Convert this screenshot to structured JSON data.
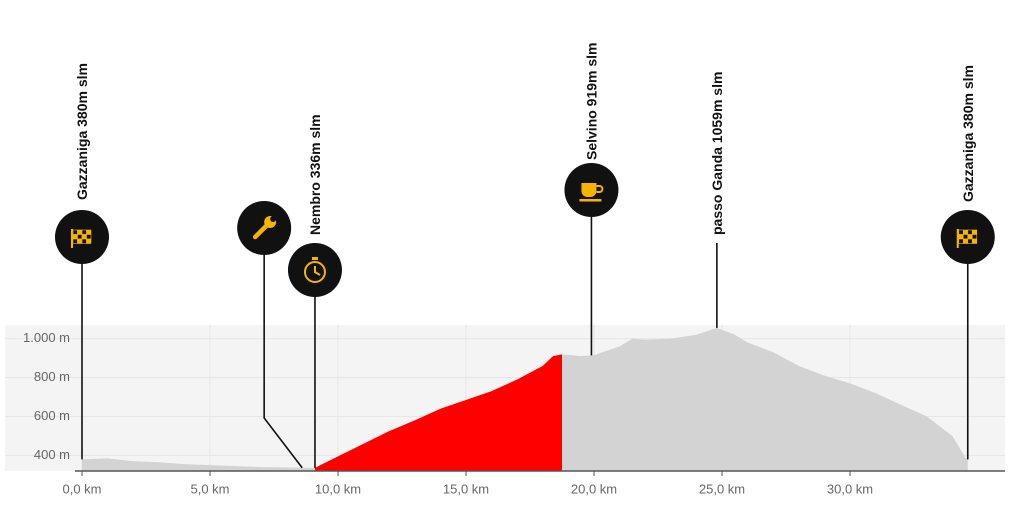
{
  "chart_data": {
    "type": "area",
    "x": [
      0,
      1,
      2,
      3,
      4,
      5,
      6,
      7,
      8,
      9.1,
      10,
      11,
      12,
      13,
      14,
      15,
      16,
      17,
      18,
      18.4,
      18.75,
      19.5,
      20,
      21,
      21.5,
      22,
      23,
      24,
      24.8,
      25.5,
      26,
      27,
      28,
      29,
      30,
      31,
      32,
      33,
      34,
      34.5,
      34.6
    ],
    "series": [
      {
        "color": "#d3d3d3",
        "values": [
          380,
          385,
          370,
          365,
          355,
          350,
          345,
          340,
          338,
          336,
          null,
          null,
          null,
          null,
          null,
          null,
          null,
          null,
          null,
          null,
          919,
          910,
          915,
          960,
          1000,
          995,
          1000,
          1020,
          1055,
          1020,
          980,
          930,
          860,
          810,
          770,
          720,
          660,
          600,
          500,
          390,
          380
        ]
      },
      {
        "color": "#ff0000",
        "values": [
          null,
          null,
          null,
          null,
          null,
          null,
          null,
          null,
          null,
          336,
          395,
          460,
          525,
          580,
          640,
          685,
          730,
          790,
          860,
          910,
          919,
          null,
          null,
          null,
          null,
          null,
          null,
          null,
          null,
          null,
          null,
          null,
          null,
          null,
          null,
          null,
          null,
          null,
          null,
          null,
          null
        ]
      }
    ],
    "xlim": [
      0,
      36
    ],
    "ylim": [
      320,
      1070
    ],
    "xticks": [
      {
        "value": 0,
        "label": "0,0 km"
      },
      {
        "value": 5,
        "label": "5,0 km"
      },
      {
        "value": 10,
        "label": "10,0 km"
      },
      {
        "value": 15,
        "label": "15,0 km"
      },
      {
        "value": 20,
        "label": "20,0 km"
      },
      {
        "value": 25,
        "label": "25,0 km"
      },
      {
        "value": 30,
        "label": "30,0 km"
      }
    ],
    "yticks": [
      {
        "value": 400,
        "label": "400 m"
      },
      {
        "value": 600,
        "label": "600 m"
      },
      {
        "value": 800,
        "label": "800 m"
      },
      {
        "value": 1000,
        "label": "1.000 m"
      }
    ],
    "grid": true,
    "annotations": [
      {
        "x": 0,
        "label": "Gazzaniga 380m slm",
        "icon": "flag"
      },
      {
        "x": 8.6,
        "icon": "wrench"
      },
      {
        "x": 9.1,
        "label": "Nembro 336m slm",
        "icon": "stopwatch"
      },
      {
        "x": 19.9,
        "label": "Selvino 919m slm",
        "icon": "cup"
      },
      {
        "x": 24.8,
        "label": "passo Ganda 1059m slm"
      },
      {
        "x": 34.6,
        "label": "Gazzaniga 380m slm",
        "icon": "flag"
      }
    ]
  }
}
